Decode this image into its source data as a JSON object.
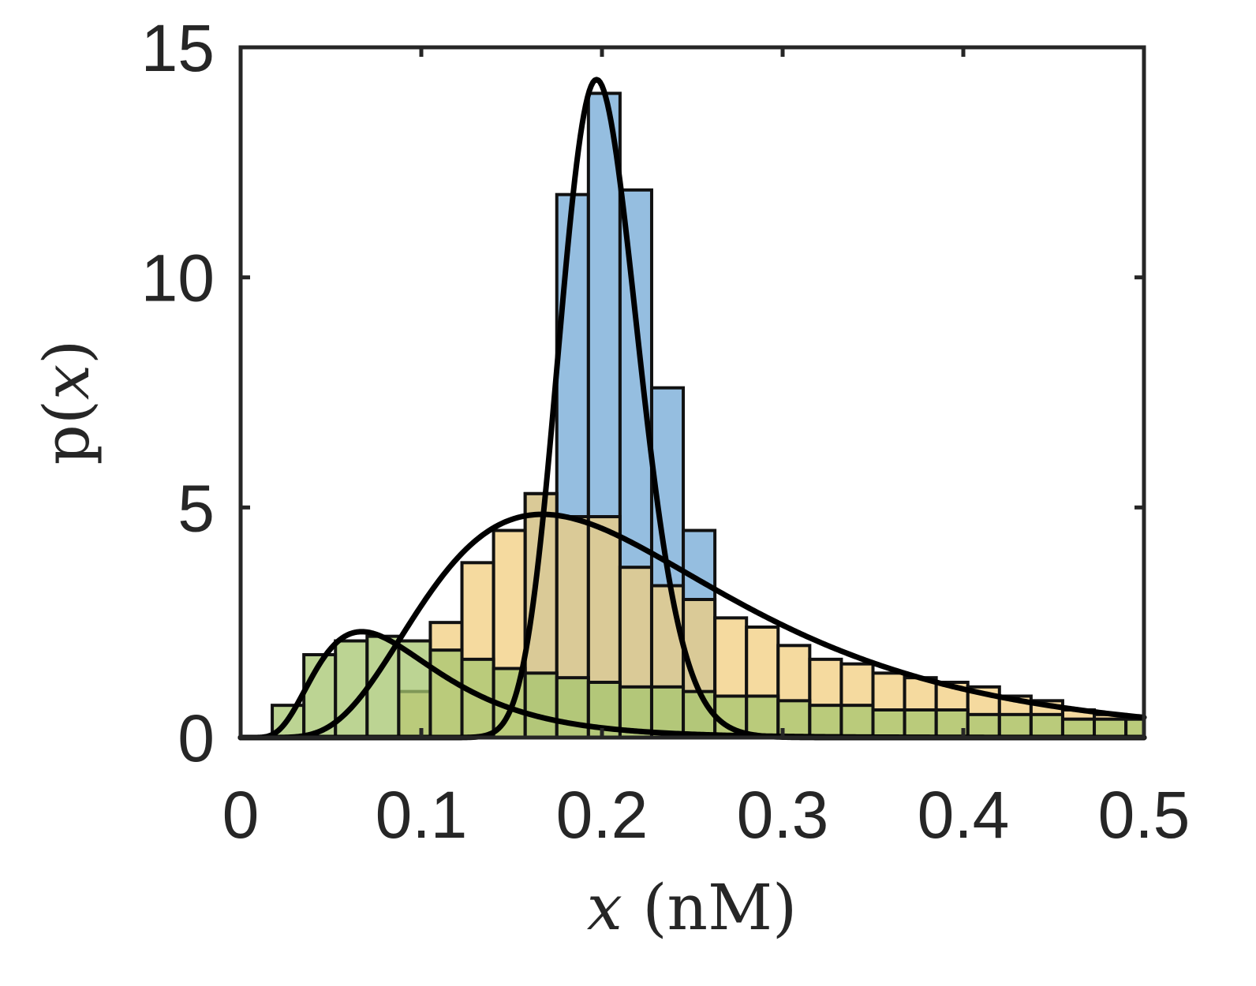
{
  "chart_data": {
    "type": "bar",
    "subtype": "overlaid-histograms-with-density-curves",
    "title": "",
    "xlabel": {
      "var": "x",
      "unit": " (nM)"
    },
    "ylabel": {
      "prefix": "p(",
      "var": "x",
      "suffix": ")"
    },
    "xlim": [
      0,
      0.5
    ],
    "ylim": [
      0,
      15
    ],
    "xticks": [
      0,
      0.1,
      0.2,
      0.3,
      0.4,
      0.5
    ],
    "xtick_labels": [
      "0",
      "0.1",
      "0.2",
      "0.3",
      "0.4",
      "0.5"
    ],
    "yticks": [
      0,
      5,
      10,
      15
    ],
    "ytick_labels": [
      "0",
      "5",
      "10",
      "15"
    ],
    "grid": false,
    "legend": "none",
    "bin_width": 0.0175,
    "series": [
      {
        "color": "#72a8d6",
        "bin_edges": [
          0.1575,
          0.175,
          0.1925,
          0.21,
          0.2275,
          0.245,
          0.2625
        ],
        "values": [
          5.3,
          11.8,
          14.0,
          11.9,
          7.6,
          4.5
        ],
        "curve": {
          "type": "lognormal-like",
          "mode": 0.197,
          "peak": 14.3
        }
      },
      {
        "color": "#f2cd7f",
        "bin_edges": [
          0.0875,
          0.105,
          0.1225,
          0.14,
          0.1575,
          0.175,
          0.1925,
          0.21,
          0.2275,
          0.245,
          0.2625,
          0.28,
          0.2975,
          0.315,
          0.3325,
          0.35,
          0.3675,
          0.385,
          0.4025,
          0.42,
          0.4375,
          0.455,
          0.4725,
          0.49,
          0.5
        ],
        "values": [
          1.0,
          2.5,
          3.8,
          4.5,
          5.3,
          4.8,
          4.8,
          3.7,
          3.3,
          3.0,
          2.6,
          2.4,
          2.0,
          1.7,
          1.6,
          1.4,
          1.3,
          1.2,
          1.1,
          0.9,
          0.8,
          0.6,
          0.5,
          0.4
        ],
        "curve": {
          "type": "lognormal-like",
          "mode": 0.167,
          "peak": 4.85
        }
      },
      {
        "color": "#a6c66f",
        "bin_edges": [
          0.0175,
          0.035,
          0.0525,
          0.07,
          0.0875,
          0.105,
          0.1225,
          0.14,
          0.1575,
          0.175,
          0.1925,
          0.21,
          0.2275,
          0.245,
          0.2625,
          0.28,
          0.2975,
          0.315,
          0.3325,
          0.35,
          0.3675,
          0.385,
          0.4025,
          0.42,
          0.4375,
          0.455,
          0.4725,
          0.49,
          0.5
        ],
        "values": [
          0.7,
          1.8,
          2.1,
          2.2,
          2.1,
          1.9,
          1.7,
          1.5,
          1.4,
          1.3,
          1.2,
          1.1,
          1.1,
          1.0,
          0.9,
          0.9,
          0.8,
          0.7,
          0.7,
          0.6,
          0.6,
          0.6,
          0.5,
          0.5,
          0.5,
          0.4,
          0.4,
          0.4
        ],
        "curve": {
          "type": "lognormal-like",
          "mode": 0.067,
          "peak": 2.3
        }
      }
    ]
  }
}
